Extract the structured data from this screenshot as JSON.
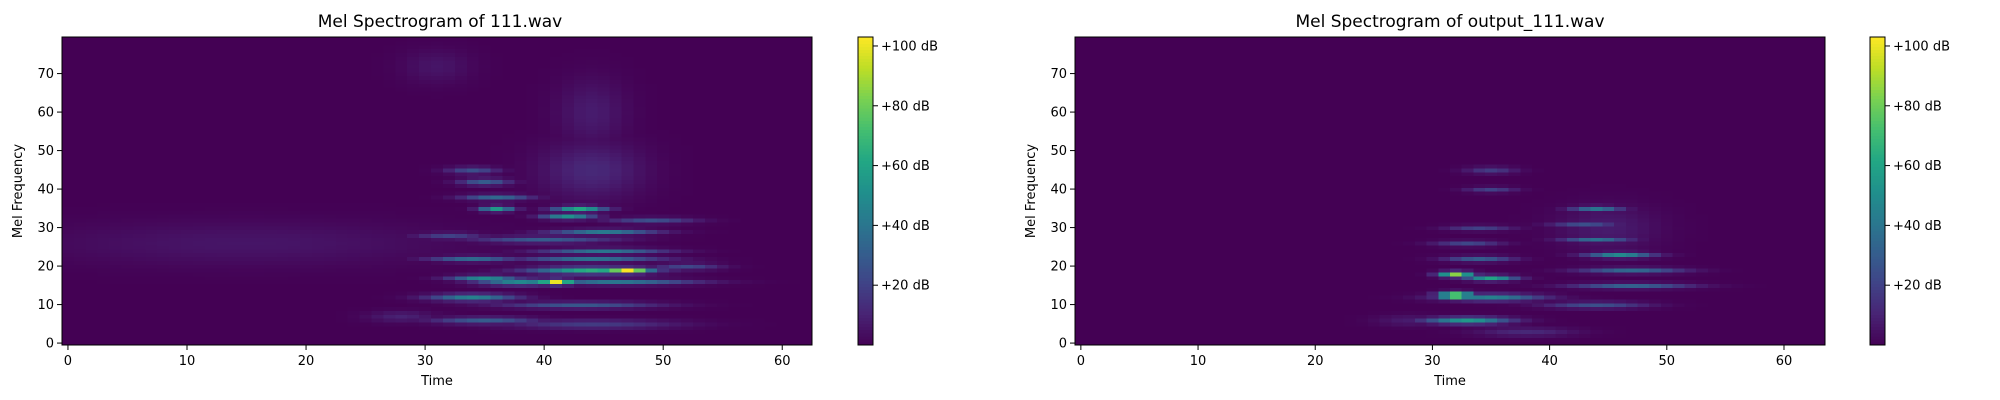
{
  "chart_data": [
    {
      "type": "heatmap",
      "title": "Mel Spectrogram of 111.wav",
      "xlabel": "Time",
      "ylabel": "Mel Frequency",
      "xlim": [
        -0.5,
        62.5
      ],
      "ylim": [
        -0.5,
        79.5
      ],
      "x_ticks": [
        0,
        10,
        20,
        30,
        40,
        50,
        60
      ],
      "y_ticks": [
        0,
        10,
        20,
        30,
        40,
        50,
        60,
        70
      ],
      "colormap": "viridis",
      "colorbar": {
        "ticks": [
          20,
          40,
          60,
          80,
          100
        ],
        "tick_labels": [
          "+20 dB",
          "+40 dB",
          "+60 dB",
          "+80 dB",
          "+100 dB"
        ],
        "range": [
          0,
          103
        ]
      },
      "grid": false,
      "n_frames": 63,
      "n_mels": 80,
      "blobs": [
        {
          "t": 41,
          "m": 16,
          "st": 1.0,
          "sm": 0.5,
          "v": 100
        },
        {
          "t": 47,
          "m": 19,
          "st": 1.4,
          "sm": 0.5,
          "v": 102
        },
        {
          "t": 44,
          "m": 19,
          "st": 3.5,
          "sm": 0.6,
          "v": 65
        },
        {
          "t": 43,
          "m": 35,
          "st": 1.5,
          "sm": 0.5,
          "v": 62
        },
        {
          "t": 36,
          "m": 35,
          "st": 1.0,
          "sm": 0.5,
          "v": 55
        },
        {
          "t": 42,
          "m": 33,
          "st": 1.5,
          "sm": 0.5,
          "v": 52
        },
        {
          "t": 35,
          "m": 17,
          "st": 2.0,
          "sm": 0.5,
          "v": 50
        },
        {
          "t": 38,
          "m": 16,
          "st": 2.5,
          "sm": 0.6,
          "v": 48
        },
        {
          "t": 34,
          "m": 12,
          "st": 2.5,
          "sm": 0.6,
          "v": 45
        },
        {
          "t": 45,
          "m": 29,
          "st": 3.0,
          "sm": 0.5,
          "v": 42
        },
        {
          "t": 45,
          "m": 24,
          "st": 3.5,
          "sm": 0.5,
          "v": 40
        },
        {
          "t": 44,
          "m": 22,
          "st": 4.0,
          "sm": 0.5,
          "v": 38
        },
        {
          "t": 46,
          "m": 16,
          "st": 4.5,
          "sm": 0.5,
          "v": 40
        },
        {
          "t": 34,
          "m": 22,
          "st": 2.5,
          "sm": 0.5,
          "v": 35
        },
        {
          "t": 35,
          "m": 6,
          "st": 3.0,
          "sm": 0.6,
          "v": 30
        },
        {
          "t": 36,
          "m": 38,
          "st": 2.0,
          "sm": 0.5,
          "v": 35
        },
        {
          "t": 35,
          "m": 42,
          "st": 1.5,
          "sm": 0.6,
          "v": 30
        },
        {
          "t": 34,
          "m": 45,
          "st": 1.5,
          "sm": 0.6,
          "v": 25
        },
        {
          "t": 43,
          "m": 10,
          "st": 4.5,
          "sm": 0.6,
          "v": 28
        },
        {
          "t": 44,
          "m": 5,
          "st": 5.0,
          "sm": 0.8,
          "v": 18
        },
        {
          "t": 40,
          "m": 27,
          "st": 4.0,
          "sm": 0.6,
          "v": 30
        },
        {
          "t": 49,
          "m": 32,
          "st": 2.5,
          "sm": 0.5,
          "v": 25
        },
        {
          "t": 52,
          "m": 20,
          "st": 2.0,
          "sm": 0.6,
          "v": 22
        },
        {
          "t": 32,
          "m": 28,
          "st": 2.0,
          "sm": 0.6,
          "v": 20
        },
        {
          "t": 44,
          "m": 45,
          "st": 3.0,
          "sm": 5.0,
          "v": 12
        },
        {
          "t": 44,
          "m": 60,
          "st": 2.0,
          "sm": 6.0,
          "v": 8
        },
        {
          "t": 31,
          "m": 72,
          "st": 2.0,
          "sm": 3.0,
          "v": 6
        },
        {
          "t": 15,
          "m": 26,
          "st": 12.0,
          "sm": 4.0,
          "v": 6
        },
        {
          "t": 28,
          "m": 7,
          "st": 2.0,
          "sm": 1.0,
          "v": 10
        }
      ]
    },
    {
      "type": "heatmap",
      "title": "Mel Spectrogram of output_111.wav",
      "xlabel": "Time",
      "ylabel": "Mel Frequency",
      "xlim": [
        -0.5,
        63.5
      ],
      "ylim": [
        -0.5,
        79.5
      ],
      "x_ticks": [
        0,
        10,
        20,
        30,
        40,
        50,
        60
      ],
      "y_ticks": [
        0,
        10,
        20,
        30,
        40,
        50,
        60,
        70
      ],
      "colormap": "viridis",
      "colorbar": {
        "ticks": [
          20,
          40,
          60,
          80,
          100
        ],
        "tick_labels": [
          "+20 dB",
          "+40 dB",
          "+60 dB",
          "+80 dB",
          "+100 dB"
        ],
        "range": [
          0,
          103
        ]
      },
      "grid": false,
      "n_frames": 64,
      "n_mels": 80,
      "blobs": [
        {
          "t": 32,
          "m": 12.5,
          "st": 1.0,
          "sm": 0.6,
          "v": 102
        },
        {
          "t": 32,
          "m": 18,
          "st": 1.0,
          "sm": 0.5,
          "v": 85
        },
        {
          "t": 35,
          "m": 17,
          "st": 1.5,
          "sm": 0.5,
          "v": 60
        },
        {
          "t": 33,
          "m": 6,
          "st": 2.5,
          "sm": 0.6,
          "v": 55
        },
        {
          "t": 35,
          "m": 12,
          "st": 3.0,
          "sm": 0.6,
          "v": 45
        },
        {
          "t": 46,
          "m": 23,
          "st": 2.0,
          "sm": 0.5,
          "v": 48
        },
        {
          "t": 44,
          "m": 35,
          "st": 1.5,
          "sm": 0.5,
          "v": 40
        },
        {
          "t": 44,
          "m": 27,
          "st": 2.0,
          "sm": 0.5,
          "v": 38
        },
        {
          "t": 47,
          "m": 19,
          "st": 3.0,
          "sm": 0.5,
          "v": 35
        },
        {
          "t": 47,
          "m": 15,
          "st": 3.5,
          "sm": 0.5,
          "v": 32
        },
        {
          "t": 44,
          "m": 10,
          "st": 3.0,
          "sm": 0.6,
          "v": 25
        },
        {
          "t": 34,
          "m": 22,
          "st": 2.0,
          "sm": 0.5,
          "v": 30
        },
        {
          "t": 33,
          "m": 26,
          "st": 2.0,
          "sm": 0.5,
          "v": 22
        },
        {
          "t": 34,
          "m": 30,
          "st": 2.0,
          "sm": 0.5,
          "v": 20
        },
        {
          "t": 35,
          "m": 40,
          "st": 1.5,
          "sm": 0.5,
          "v": 20
        },
        {
          "t": 35,
          "m": 45,
          "st": 1.5,
          "sm": 0.6,
          "v": 18
        },
        {
          "t": 43,
          "m": 31,
          "st": 2.0,
          "sm": 0.5,
          "v": 25
        },
        {
          "t": 38,
          "m": 3,
          "st": 3.0,
          "sm": 0.8,
          "v": 12
        },
        {
          "t": 45,
          "m": 30,
          "st": 3.0,
          "sm": 4.0,
          "v": 8
        },
        {
          "t": 28,
          "m": 6,
          "st": 2.0,
          "sm": 1.0,
          "v": 8
        }
      ]
    }
  ]
}
